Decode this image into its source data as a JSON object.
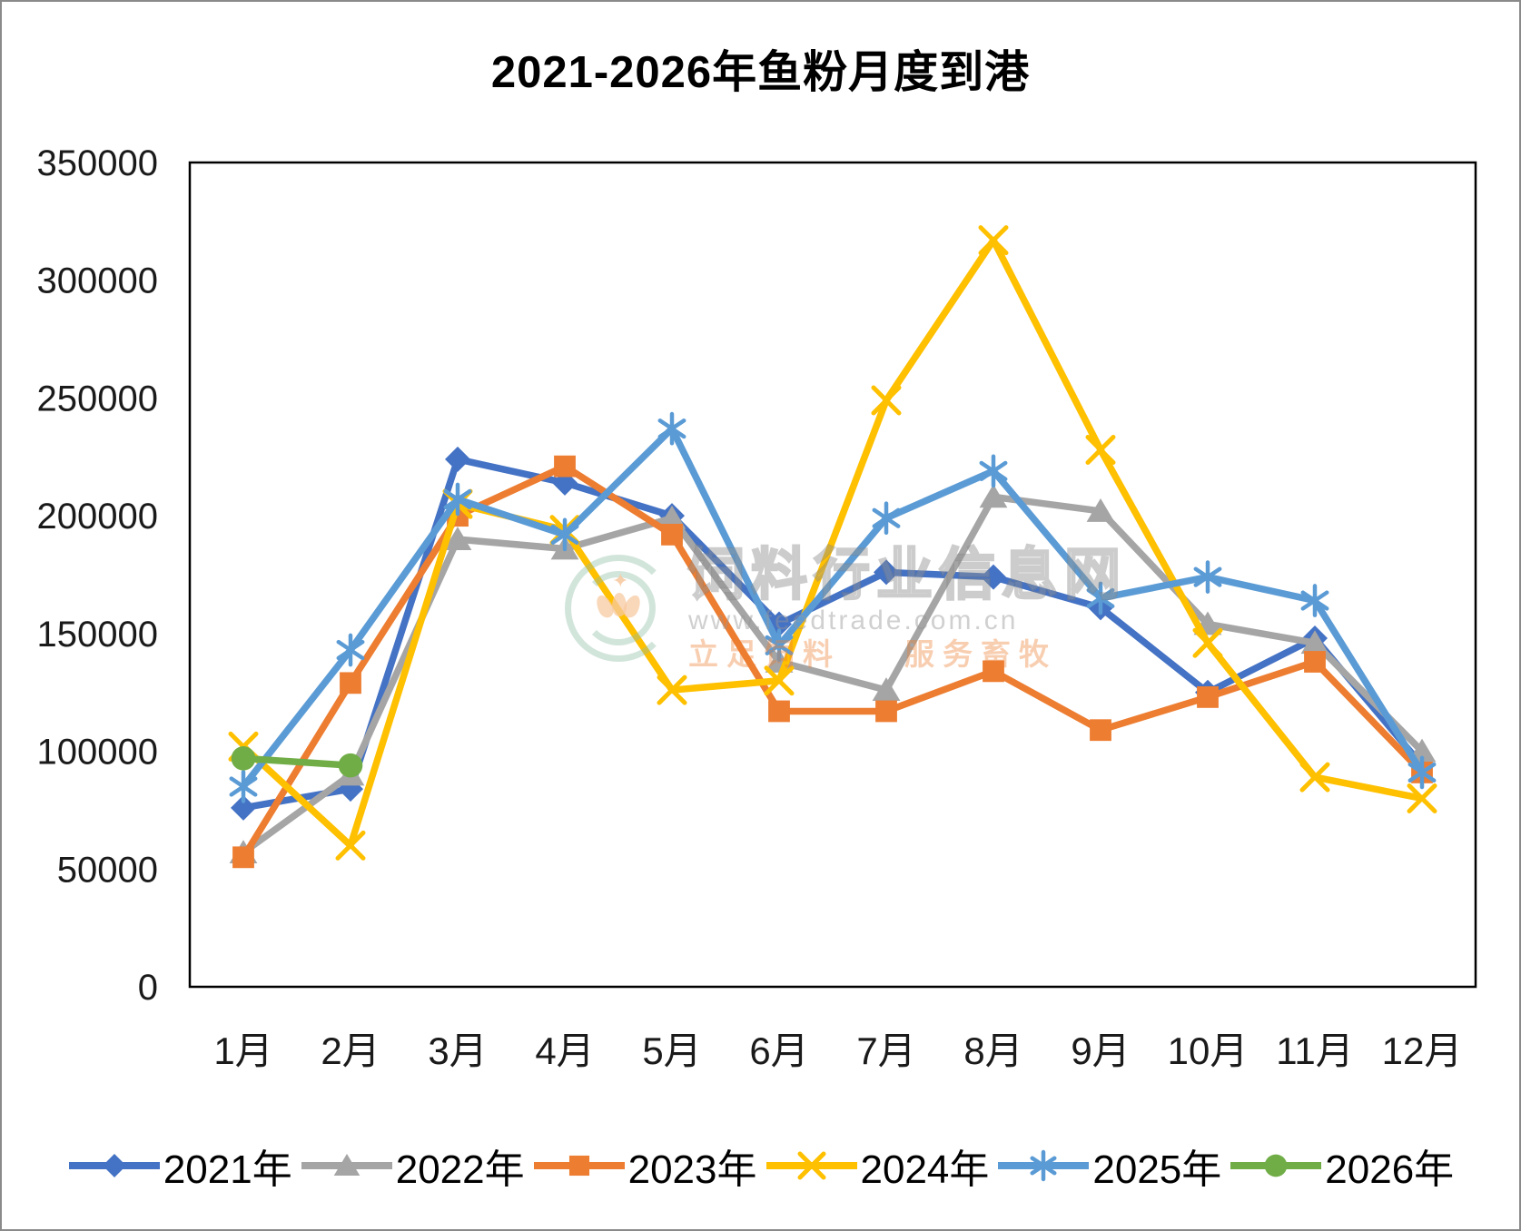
{
  "title": "2021-2026年鱼粉月度到港",
  "watermark": {
    "site_name": "饲料行业信息网",
    "site_url": "www.feedtrade.com.cn",
    "slogan_left": "立足饲料",
    "slogan_right": "服务畜牧",
    "sparkle_icon": "✦"
  },
  "chart_data": {
    "type": "line",
    "title": "2021-2026年鱼粉月度到港",
    "categories": [
      "1月",
      "2月",
      "3月",
      "4月",
      "5月",
      "6月",
      "7月",
      "8月",
      "9月",
      "10月",
      "11月",
      "12月"
    ],
    "xlabel": "",
    "ylabel": "",
    "ylim": [
      0,
      350000
    ],
    "ytick_step": 50000,
    "grid": false,
    "legend_position": "bottom",
    "series": [
      {
        "name": "2021年",
        "color": "#4472C4",
        "marker": "diamond",
        "values": [
          76000,
          84000,
          224000,
          214000,
          200000,
          154000,
          176000,
          174000,
          161000,
          125000,
          148000,
          94000
        ]
      },
      {
        "name": "2022年",
        "color": "#A5A5A5",
        "marker": "triangle",
        "values": [
          57000,
          90000,
          190000,
          186000,
          199000,
          138000,
          126000,
          208000,
          202000,
          154000,
          146000,
          100000
        ]
      },
      {
        "name": "2023年",
        "color": "#ED7D31",
        "marker": "square",
        "values": [
          55000,
          129000,
          200000,
          221000,
          192000,
          117000,
          117000,
          134000,
          109000,
          123000,
          138000,
          91000
        ]
      },
      {
        "name": "2024年",
        "color": "#FFC000",
        "marker": "x",
        "values": [
          102000,
          60000,
          205000,
          194000,
          126000,
          130000,
          249000,
          317000,
          228000,
          146000,
          89000,
          80000
        ]
      },
      {
        "name": "2025年",
        "color": "#5B9BD5",
        "marker": "asterisk",
        "values": [
          85000,
          143000,
          207000,
          192000,
          237000,
          145000,
          199000,
          219000,
          165000,
          174000,
          164000,
          91000
        ]
      },
      {
        "name": "2026年",
        "color": "#70AD47",
        "marker": "circle",
        "values": [
          97000,
          94000,
          null,
          null,
          null,
          null,
          null,
          null,
          null,
          null,
          null,
          null
        ]
      }
    ]
  }
}
